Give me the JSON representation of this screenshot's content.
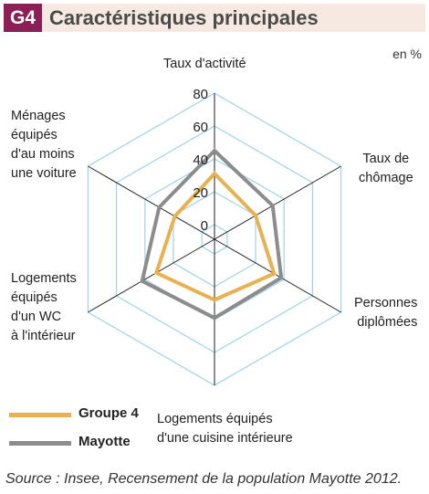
{
  "header": {
    "badge": "G4",
    "title": "Caractéristiques principales"
  },
  "unit": "en %",
  "chart_data": {
    "type": "radar",
    "axes": [
      "Taux d'activité",
      "Taux de\nchômage",
      "Personnes\ndiplômées",
      "Logements équipés\nd'une cuisine intérieure",
      "Logements\néquipés\nd'un WC\nà l'intérieur",
      "Ménages\néquipés\nd'au moins\nune voiture"
    ],
    "ticks": [
      "0",
      "20",
      "40",
      "60",
      "80"
    ],
    "range": [
      0,
      80
    ],
    "series": [
      {
        "name": "Groupe 4",
        "color": "#e8b04e",
        "values": [
          31,
          20,
          33,
          28,
          32,
          19
        ]
      },
      {
        "name": "Mayotte",
        "color": "#8c8c8c",
        "values": [
          45,
          32,
          38,
          39,
          42,
          30
        ]
      }
    ]
  },
  "source": "Source : Insee, Recensement de la population Mayotte 2012."
}
